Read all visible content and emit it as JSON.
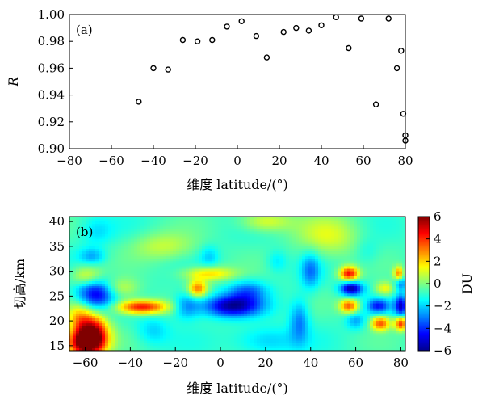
{
  "chart_data": [
    {
      "panel": "(a)",
      "type": "scatter",
      "title": "",
      "xlabel": "维度 latitude/(°)",
      "ylabel": "R",
      "xlim": [
        -80,
        80
      ],
      "ylim": [
        0.9,
        1.0
      ],
      "xticks": [
        -80,
        -60,
        -40,
        -20,
        0,
        20,
        40,
        60,
        80
      ],
      "xtick_labels": [
        "−80",
        "−60",
        "−40",
        "−20",
        "0",
        "20",
        "40",
        "60",
        "80"
      ],
      "yticks": [
        0.9,
        0.92,
        0.94,
        0.96,
        0.98,
        1.0
      ],
      "ytick_labels": [
        "0.90",
        "0.92",
        "0.94",
        "0.96",
        "0.98",
        "1.00"
      ],
      "grid": false,
      "marker": "open-circle",
      "points": [
        {
          "x": -47,
          "y": 0.935
        },
        {
          "x": -40,
          "y": 0.96
        },
        {
          "x": -33,
          "y": 0.959
        },
        {
          "x": -26,
          "y": 0.981
        },
        {
          "x": -19,
          "y": 0.98
        },
        {
          "x": -12,
          "y": 0.981
        },
        {
          "x": -5,
          "y": 0.991
        },
        {
          "x": 2,
          "y": 0.995
        },
        {
          "x": 9,
          "y": 0.984
        },
        {
          "x": 14,
          "y": 0.968
        },
        {
          "x": 22,
          "y": 0.987
        },
        {
          "x": 28,
          "y": 0.99
        },
        {
          "x": 34,
          "y": 0.988
        },
        {
          "x": 40,
          "y": 0.992
        },
        {
          "x": 47,
          "y": 0.998
        },
        {
          "x": 53,
          "y": 0.975
        },
        {
          "x": 59,
          "y": 0.997
        },
        {
          "x": 66,
          "y": 0.933
        },
        {
          "x": 72,
          "y": 0.997
        },
        {
          "x": 76,
          "y": 0.96
        },
        {
          "x": 78,
          "y": 0.973
        },
        {
          "x": 79,
          "y": 0.926
        },
        {
          "x": 80,
          "y": 0.91
        },
        {
          "x": 80,
          "y": 0.906
        }
      ]
    },
    {
      "panel": "(b)",
      "type": "heatmap",
      "title": "",
      "xlabel": "维度 latitude/(°)",
      "ylabel": "切高/km",
      "colorbar_label": "DU",
      "xlim": [
        -67,
        82
      ],
      "ylim": [
        14,
        41
      ],
      "xticks": [
        -60,
        -40,
        -20,
        0,
        20,
        40,
        60,
        80
      ],
      "xtick_labels": [
        "−60",
        "−40",
        "−20",
        "0",
        "20",
        "40",
        "60",
        "80"
      ],
      "yticks": [
        15,
        20,
        25,
        30,
        35,
        40
      ],
      "ytick_labels": [
        "15",
        "20",
        "25",
        "30",
        "35",
        "40"
      ],
      "crange": [
        -6,
        6
      ],
      "cticks": [
        -6,
        -4,
        -2,
        0,
        2,
        4,
        6
      ],
      "ctick_labels": [
        "−6",
        "−4",
        "−2",
        "0",
        "2",
        "4",
        "6"
      ],
      "colormap": "jet",
      "background_value": -0.8,
      "features": [
        {
          "lat": -57,
          "alt": 18,
          "value": 4.5,
          "sx": 5,
          "sy": 2.5
        },
        {
          "lat": -60,
          "alt": 15.5,
          "value": 6,
          "sx": 6,
          "sy": 2
        },
        {
          "lat": -63,
          "alt": 21,
          "value": 1.5,
          "sx": 4,
          "sy": 2
        },
        {
          "lat": -55,
          "alt": 25.5,
          "value": -5,
          "sx": 6,
          "sy": 2.2
        },
        {
          "lat": -59,
          "alt": 29,
          "value": 1.5,
          "sx": 5,
          "sy": 1.5
        },
        {
          "lat": -57,
          "alt": 33,
          "value": -2.5,
          "sx": 4,
          "sy": 1.2
        },
        {
          "lat": -35,
          "alt": 22.8,
          "value": 4.5,
          "sx": 8,
          "sy": 1
        },
        {
          "lat": -45,
          "alt": 26.5,
          "value": 1.2,
          "sx": 6,
          "sy": 1.5
        },
        {
          "lat": -10,
          "alt": 26.5,
          "value": 3,
          "sx": 3,
          "sy": 1.2
        },
        {
          "lat": -5,
          "alt": 29.5,
          "value": 2,
          "sx": 8,
          "sy": 1
        },
        {
          "lat": 5,
          "alt": 23,
          "value": -5.5,
          "sx": 9,
          "sy": 1.5
        },
        {
          "lat": 12,
          "alt": 26,
          "value": -3,
          "sx": 6,
          "sy": 1.5
        },
        {
          "lat": -15,
          "alt": 23,
          "value": -3,
          "sx": 4,
          "sy": 1.8
        },
        {
          "lat": -30,
          "alt": 18,
          "value": -2,
          "sx": 5,
          "sy": 2
        },
        {
          "lat": 35,
          "alt": 20,
          "value": -3,
          "sx": 3,
          "sy": 3
        },
        {
          "lat": 40,
          "alt": 30,
          "value": -3,
          "sx": 3,
          "sy": 2.5
        },
        {
          "lat": 57,
          "alt": 29.5,
          "value": 4.5,
          "sx": 3,
          "sy": 1
        },
        {
          "lat": 58,
          "alt": 26.5,
          "value": -5.5,
          "sx": 3.5,
          "sy": 1
        },
        {
          "lat": 57,
          "alt": 23,
          "value": 3.5,
          "sx": 3,
          "sy": 1
        },
        {
          "lat": 60,
          "alt": 20,
          "value": -2.5,
          "sx": 3,
          "sy": 1.2
        },
        {
          "lat": 70,
          "alt": 23,
          "value": -4,
          "sx": 3.5,
          "sy": 1
        },
        {
          "lat": 71,
          "alt": 19.5,
          "value": 3.5,
          "sx": 3,
          "sy": 1
        },
        {
          "lat": 73,
          "alt": 26.5,
          "value": 1.5,
          "sx": 3,
          "sy": 1
        },
        {
          "lat": 80,
          "alt": 23,
          "value": -5,
          "sx": 2,
          "sy": 1.5
        },
        {
          "lat": 80,
          "alt": 19.5,
          "value": 4,
          "sx": 2,
          "sy": 1
        },
        {
          "lat": 80,
          "alt": 27.5,
          "value": -3,
          "sx": 2,
          "sy": 1
        },
        {
          "lat": 79,
          "alt": 29.5,
          "value": 3,
          "sx": 1.5,
          "sy": 1
        },
        {
          "lat": -55,
          "alt": 38,
          "value": -1.8,
          "sx": 5,
          "sy": 2
        },
        {
          "lat": 20,
          "alt": 40,
          "value": 1.2,
          "sx": 8,
          "sy": 1.5
        },
        {
          "lat": 48,
          "alt": 37,
          "value": 1.0,
          "sx": 10,
          "sy": 3
        },
        {
          "lat": -25,
          "alt": 35,
          "value": 0.8,
          "sx": 10,
          "sy": 2
        },
        {
          "lat": 20,
          "alt": 16,
          "value": -2.2,
          "sx": 10,
          "sy": 2
        },
        {
          "lat": -5,
          "alt": 33,
          "value": -2,
          "sx": 3,
          "sy": 1.5
        },
        {
          "lat": 25,
          "alt": 32,
          "value": -1.8,
          "sx": 3,
          "sy": 1.5
        },
        {
          "lat": 65,
          "alt": 34,
          "value": -1.5,
          "sx": 4,
          "sy": 2
        }
      ]
    }
  ]
}
